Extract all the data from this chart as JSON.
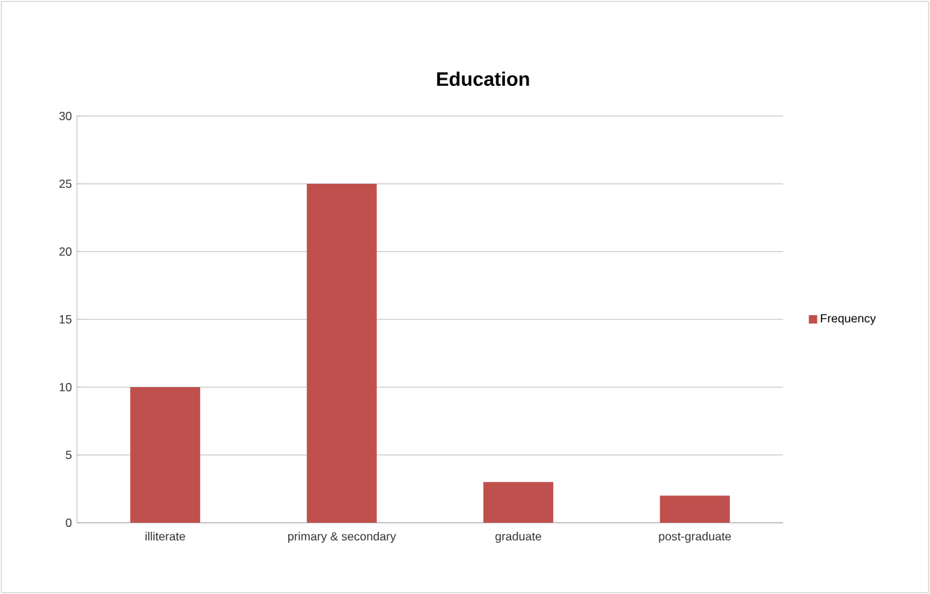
{
  "chart_data": {
    "type": "bar",
    "title": "Education",
    "categories": [
      "illiterate",
      "primary & secondary",
      "graduate",
      "post-graduate"
    ],
    "series": [
      {
        "name": "Frequency",
        "color": "#c0504d",
        "values": [
          10,
          25,
          3,
          2
        ]
      }
    ],
    "ylim": [
      0,
      30
    ],
    "yticks": [
      0,
      5,
      10,
      15,
      20,
      25,
      30
    ],
    "grid": "y",
    "legend": "right"
  }
}
